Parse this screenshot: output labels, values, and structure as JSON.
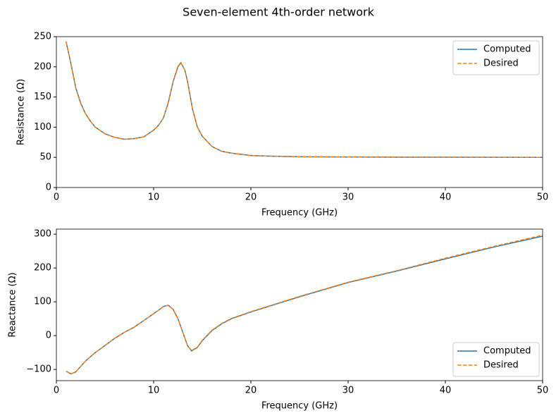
{
  "title": "Seven-element 4th-order network",
  "chart_data": [
    {
      "type": "line",
      "xlabel": "Frequency (GHz)",
      "ylabel": "Resistance (Ω)",
      "xlim": [
        0,
        50
      ],
      "xticks": [
        0,
        10,
        20,
        30,
        40,
        50
      ],
      "ylim": [
        0,
        250
      ],
      "yticks": [
        0,
        50,
        100,
        150,
        200,
        250
      ],
      "grid": false,
      "legend": "upper right",
      "x": [
        1,
        1.5,
        2,
        2.5,
        3,
        3.5,
        4,
        5,
        6,
        7,
        8,
        9,
        10,
        10.5,
        11,
        11.5,
        12,
        12.5,
        12.8,
        13.2,
        13.5,
        14,
        14.5,
        15,
        16,
        17,
        18,
        20,
        22,
        25,
        30,
        35,
        40,
        45,
        50
      ],
      "series": [
        {
          "name": "Computed",
          "color": "#1f77b4",
          "dash": false,
          "values": [
            242,
            205,
            165,
            140,
            122,
            110,
            100,
            89,
            83,
            80,
            81,
            84,
            95,
            103,
            115,
            140,
            175,
            200,
            207,
            195,
            175,
            130,
            100,
            85,
            68,
            60,
            57,
            53,
            52,
            51,
            50.5,
            50.3,
            50.2,
            50.1,
            50
          ]
        },
        {
          "name": "Desired",
          "color": "#ff7f0e",
          "dash": true,
          "values": [
            241,
            204,
            164,
            139,
            122,
            110,
            100,
            89,
            83,
            80,
            81,
            84,
            95,
            103,
            115,
            141,
            176,
            201,
            207,
            195,
            174,
            129,
            100,
            85,
            68,
            60,
            57,
            53,
            52,
            51,
            50.5,
            50.3,
            50.2,
            50.1,
            50
          ]
        }
      ]
    },
    {
      "type": "line",
      "xlabel": "Frequency (GHz)",
      "ylabel": "Reactance (Ω)",
      "xlim": [
        0,
        50
      ],
      "xticks": [
        0,
        10,
        20,
        30,
        40,
        50
      ],
      "ylim": [
        -133,
        315
      ],
      "yticks": [
        {
          "value": -100,
          "label": "−100"
        },
        0,
        100,
        200,
        300
      ],
      "grid": false,
      "legend": "lower right",
      "x": [
        1,
        1.5,
        2,
        3,
        4,
        5,
        6,
        7,
        8,
        9,
        10,
        10.5,
        11,
        11.5,
        12,
        12.5,
        13,
        13.5,
        13.9,
        14.5,
        15,
        16,
        17,
        18,
        20,
        25,
        30,
        35,
        40,
        45,
        50
      ],
      "series": [
        {
          "name": "Computed",
          "color": "#1f77b4",
          "dash": false,
          "values": [
            -105,
            -113,
            -107,
            -75,
            -50,
            -29,
            -8,
            10,
            25,
            45,
            65,
            75,
            86,
            90,
            78,
            50,
            10,
            -30,
            -45,
            -35,
            -15,
            15,
            35,
            50,
            70,
            115,
            157,
            191,
            227,
            262,
            294
          ]
        },
        {
          "name": "Desired",
          "color": "#ff7f0e",
          "dash": true,
          "values": [
            -105,
            -113,
            -107,
            -75,
            -50,
            -29,
            -8,
            10,
            25,
            45,
            65,
            75,
            86,
            90,
            78,
            50,
            10,
            -30,
            -44,
            -34,
            -14,
            16,
            36,
            51,
            71,
            116,
            158,
            192,
            229,
            264,
            297
          ]
        }
      ]
    }
  ]
}
